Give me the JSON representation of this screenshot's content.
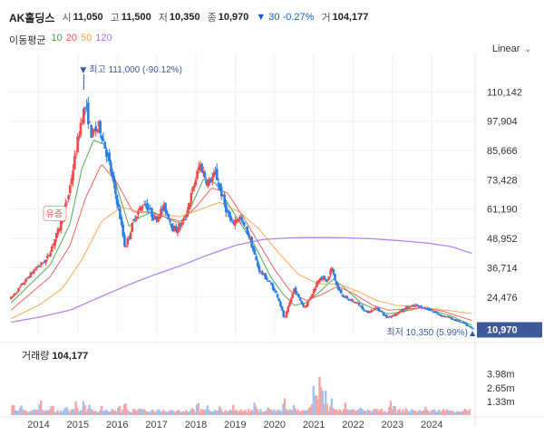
{
  "header": {
    "name": "AK홀딩스",
    "open_label": "시",
    "open": "11,050",
    "high_label": "고",
    "high": "11,500",
    "low_label": "저",
    "low": "10,350",
    "close_label": "종",
    "close": "10,970",
    "change": "▼ 30 -0.27%",
    "volume_label": "거",
    "volume": "104,177"
  },
  "ma": {
    "label": "이동평균",
    "items": [
      {
        "period": "10",
        "color": "#43a047"
      },
      {
        "period": "20",
        "color": "#ef5350"
      },
      {
        "period": "50",
        "color": "#ff9f43"
      },
      {
        "period": "120",
        "color": "#a879f0"
      }
    ]
  },
  "scale": {
    "label": "Linear"
  },
  "colors": {
    "up": "#ef4b4b",
    "down": "#2f7fe0",
    "last_bg": "#3f5a98",
    "vol_up": "#f4a5a5",
    "vol_down": "#9fc3ee"
  },
  "chart_data": {
    "type": "candlestick",
    "x_tick_labels": [
      "2014",
      "2015",
      "2016",
      "2017",
      "2018",
      "2019",
      "2020",
      "2021",
      "2022",
      "2023",
      "2024"
    ],
    "x_range": [
      2013.25,
      2025.1
    ],
    "y_ticks": [
      24476,
      36714,
      48952,
      61190,
      73428,
      85666,
      97904,
      110142
    ],
    "y_tick_labels": [
      "24,476",
      "36,714",
      "48,952",
      "61,190",
      "73,428",
      "85,666",
      "97,904",
      "110,142"
    ],
    "y_range": [
      8500,
      122000
    ],
    "high_marker": {
      "label": "최고 111,000 (-90.12%)",
      "x": 2015.15,
      "y": 111000
    },
    "low_marker": {
      "label": "최저 10,350 (5.99%)",
      "x": 2024.8,
      "y": 10350
    },
    "last_price": {
      "label": "10,970",
      "y": 10970
    },
    "annotation": {
      "label": "유증",
      "x": 2014.4,
      "y": 59000
    },
    "price_path": [
      [
        2013.3,
        24000
      ],
      [
        2013.6,
        30000
      ],
      [
        2013.9,
        36000
      ],
      [
        2014.2,
        40000
      ],
      [
        2014.5,
        52000
      ],
      [
        2014.75,
        66000
      ],
      [
        2014.95,
        85000
      ],
      [
        2015.1,
        100000
      ],
      [
        2015.2,
        104000
      ],
      [
        2015.35,
        92000
      ],
      [
        2015.55,
        96000
      ],
      [
        2015.8,
        80000
      ],
      [
        2016.05,
        60000
      ],
      [
        2016.2,
        45000
      ],
      [
        2016.45,
        58000
      ],
      [
        2016.7,
        64000
      ],
      [
        2016.95,
        57000
      ],
      [
        2017.2,
        62000
      ],
      [
        2017.45,
        52000
      ],
      [
        2017.7,
        56000
      ],
      [
        2017.9,
        68000
      ],
      [
        2018.1,
        80000
      ],
      [
        2018.3,
        72000
      ],
      [
        2018.5,
        76000
      ],
      [
        2018.75,
        62000
      ],
      [
        2018.9,
        55000
      ],
      [
        2019.1,
        58000
      ],
      [
        2019.35,
        50000
      ],
      [
        2019.6,
        36000
      ],
      [
        2019.9,
        30000
      ],
      [
        2020.1,
        24000
      ],
      [
        2020.25,
        15000
      ],
      [
        2020.5,
        28000
      ],
      [
        2020.75,
        20000
      ],
      [
        2020.9,
        24000
      ],
      [
        2021.15,
        33000
      ],
      [
        2021.35,
        31000
      ],
      [
        2021.45,
        37000
      ],
      [
        2021.6,
        28000
      ],
      [
        2021.8,
        24000
      ],
      [
        2022.1,
        22000
      ],
      [
        2022.35,
        18000
      ],
      [
        2022.6,
        20000
      ],
      [
        2022.85,
        16000
      ],
      [
        2023.1,
        17500
      ],
      [
        2023.35,
        20000
      ],
      [
        2023.6,
        21000
      ],
      [
        2023.9,
        19500
      ],
      [
        2024.2,
        17000
      ],
      [
        2024.5,
        15500
      ],
      [
        2024.8,
        13500
      ],
      [
        2025.05,
        10970
      ]
    ],
    "ma_paths": {
      "10": [
        [
          2013.3,
          22000
        ],
        [
          2013.8,
          30000
        ],
        [
          2014.3,
          38000
        ],
        [
          2014.8,
          55000
        ],
        [
          2015.1,
          78000
        ],
        [
          2015.4,
          90000
        ],
        [
          2015.7,
          88000
        ],
        [
          2016.0,
          70000
        ],
        [
          2016.3,
          54000
        ],
        [
          2016.6,
          58000
        ],
        [
          2016.9,
          60000
        ],
        [
          2017.2,
          58000
        ],
        [
          2017.6,
          55000
        ],
        [
          2017.9,
          63000
        ],
        [
          2018.2,
          74000
        ],
        [
          2018.5,
          72000
        ],
        [
          2018.8,
          64000
        ],
        [
          2019.1,
          56000
        ],
        [
          2019.5,
          46000
        ],
        [
          2019.9,
          33000
        ],
        [
          2020.2,
          26000
        ],
        [
          2020.5,
          21000
        ],
        [
          2020.8,
          22000
        ],
        [
          2021.1,
          26000
        ],
        [
          2021.5,
          32000
        ],
        [
          2021.8,
          28000
        ],
        [
          2022.2,
          22000
        ],
        [
          2022.6,
          19000
        ],
        [
          2022.9,
          17500
        ],
        [
          2023.3,
          18500
        ],
        [
          2023.7,
          20000
        ],
        [
          2024.1,
          18500
        ],
        [
          2024.5,
          16500
        ],
        [
          2025.05,
          12500
        ]
      ],
      "20": [
        [
          2013.3,
          19000
        ],
        [
          2013.8,
          26000
        ],
        [
          2014.3,
          33000
        ],
        [
          2014.8,
          46000
        ],
        [
          2015.2,
          66000
        ],
        [
          2015.6,
          80000
        ],
        [
          2016.0,
          72000
        ],
        [
          2016.4,
          60000
        ],
        [
          2016.8,
          60000
        ],
        [
          2017.2,
          58000
        ],
        [
          2017.6,
          56000
        ],
        [
          2018.0,
          62000
        ],
        [
          2018.4,
          70000
        ],
        [
          2018.8,
          68000
        ],
        [
          2019.2,
          58000
        ],
        [
          2019.6,
          47000
        ],
        [
          2020.0,
          36000
        ],
        [
          2020.4,
          27000
        ],
        [
          2020.8,
          23000
        ],
        [
          2021.2,
          25500
        ],
        [
          2021.6,
          29000
        ],
        [
          2022.0,
          26000
        ],
        [
          2022.5,
          21000
        ],
        [
          2022.9,
          19000
        ],
        [
          2023.4,
          19500
        ],
        [
          2023.8,
          20000
        ],
        [
          2024.3,
          18500
        ],
        [
          2025.05,
          14500
        ]
      ],
      "50": [
        [
          2013.3,
          15500
        ],
        [
          2014.0,
          21000
        ],
        [
          2014.6,
          28000
        ],
        [
          2015.1,
          40000
        ],
        [
          2015.6,
          56000
        ],
        [
          2016.1,
          62000
        ],
        [
          2016.6,
          60000
        ],
        [
          2017.1,
          59000
        ],
        [
          2017.6,
          58000
        ],
        [
          2018.1,
          61000
        ],
        [
          2018.6,
          64000
        ],
        [
          2019.1,
          60000
        ],
        [
          2019.6,
          53000
        ],
        [
          2020.1,
          43000
        ],
        [
          2020.6,
          34000
        ],
        [
          2021.1,
          30000
        ],
        [
          2021.6,
          30000
        ],
        [
          2022.1,
          27000
        ],
        [
          2022.6,
          23000
        ],
        [
          2023.1,
          21000
        ],
        [
          2023.6,
          20500
        ],
        [
          2024.1,
          19500
        ],
        [
          2024.6,
          18500
        ],
        [
          2025.05,
          17500
        ]
      ],
      "120": [
        [
          2013.3,
          14000
        ],
        [
          2014.0,
          16000
        ],
        [
          2014.8,
          19000
        ],
        [
          2015.5,
          24000
        ],
        [
          2016.2,
          29000
        ],
        [
          2016.9,
          33500
        ],
        [
          2017.6,
          37500
        ],
        [
          2018.3,
          42000
        ],
        [
          2019.0,
          46000
        ],
        [
          2019.7,
          48500
        ],
        [
          2020.4,
          49200
        ],
        [
          2021.1,
          49300
        ],
        [
          2021.8,
          49200
        ],
        [
          2022.5,
          48800
        ],
        [
          2023.2,
          48000
        ],
        [
          2023.9,
          47000
        ],
        [
          2024.5,
          45500
        ],
        [
          2025.05,
          42500
        ]
      ]
    },
    "volume": {
      "title": "거래량",
      "value": "104,177",
      "y_ticks": [
        1.33,
        2.65,
        3.98
      ],
      "y_tick_labels": [
        "1.33m",
        "2.65m",
        "3.98m"
      ],
      "y_range": [
        0,
        5.1
      ],
      "spikes": [
        [
          2013.35,
          1.3
        ],
        [
          2013.55,
          1.1
        ],
        [
          2014.05,
          1.7
        ],
        [
          2014.35,
          1.2
        ],
        [
          2014.7,
          1.0
        ],
        [
          2014.95,
          1.4
        ],
        [
          2015.15,
          1.6
        ],
        [
          2015.3,
          1.1
        ],
        [
          2015.6,
          0.9
        ],
        [
          2016.05,
          1.1
        ],
        [
          2016.2,
          1.5
        ],
        [
          2016.55,
          0.8
        ],
        [
          2017.05,
          0.7
        ],
        [
          2017.35,
          0.6
        ],
        [
          2017.9,
          0.8
        ],
        [
          2018.05,
          1.5
        ],
        [
          2018.3,
          1.0
        ],
        [
          2018.6,
          0.9
        ],
        [
          2018.95,
          1.0
        ],
        [
          2019.5,
          1.4
        ],
        [
          2019.85,
          0.9
        ],
        [
          2020.25,
          1.9
        ],
        [
          2020.5,
          1.1
        ],
        [
          2020.9,
          1.0
        ],
        [
          2021.0,
          3.2
        ],
        [
          2021.05,
          2.6
        ],
        [
          2021.15,
          3.98
        ],
        [
          2021.2,
          3.5
        ],
        [
          2021.3,
          2.4
        ],
        [
          2021.45,
          1.7
        ],
        [
          2021.8,
          1.2
        ],
        [
          2022.2,
          0.9
        ],
        [
          2022.55,
          0.8
        ],
        [
          2022.95,
          1.5
        ],
        [
          2023.05,
          1.2
        ],
        [
          2023.35,
          0.8
        ],
        [
          2023.85,
          0.9
        ],
        [
          2024.3,
          0.6
        ],
        [
          2024.85,
          0.7
        ]
      ]
    }
  }
}
